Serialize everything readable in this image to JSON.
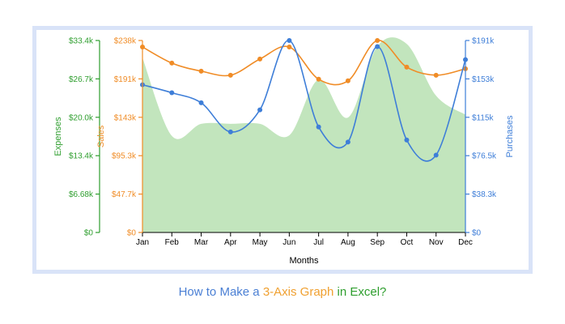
{
  "chart_data": {
    "type": "line",
    "title": "",
    "xlabel": "Months",
    "categories": [
      "Jan",
      "Feb",
      "Mar",
      "Apr",
      "May",
      "Jun",
      "Jul",
      "Aug",
      "Sep",
      "Oct",
      "Nov",
      "Dec"
    ],
    "axes": {
      "expenses": {
        "label": "Expenses",
        "color": "#2e9e2e",
        "ylim": [
          0,
          33400
        ],
        "ticks": [
          "$0",
          "$6.68k",
          "$13.4k",
          "$20.0k",
          "$26.7k",
          "$33.4k"
        ]
      },
      "sales": {
        "label": "Sales",
        "color": "#f08c26",
        "ylim": [
          0,
          238000
        ],
        "ticks": [
          "$0",
          "$47.7k",
          "$95.3k",
          "$143k",
          "$191k",
          "$238k"
        ]
      },
      "purchases": {
        "label": "Purchases",
        "color": "#3e7ed8",
        "ylim": [
          0,
          191000
        ],
        "ticks": [
          "$0",
          "$38.3k",
          "$76.5k",
          "$115k",
          "$153k",
          "$191k"
        ]
      }
    },
    "series": [
      {
        "name": "Expenses",
        "type": "area",
        "axis": "expenses",
        "color": "#c2e5bd",
        "values": [
          30400,
          16800,
          18900,
          18900,
          18900,
          16900,
          26600,
          20000,
          32400,
          32800,
          23800,
          20500
        ]
      },
      {
        "name": "Sales",
        "type": "line",
        "axis": "sales",
        "color": "#f08c26",
        "values": [
          230000,
          210000,
          200000,
          195000,
          215000,
          230000,
          190000,
          188000,
          238000,
          205000,
          195000,
          203000
        ]
      },
      {
        "name": "Purchases",
        "type": "line",
        "axis": "purchases",
        "color": "#3e7ed8",
        "values": [
          147000,
          139000,
          129000,
          100000,
          122000,
          191000,
          105000,
          90000,
          185000,
          92000,
          77000,
          172000
        ]
      }
    ]
  },
  "caption": {
    "part1": "How to Make a ",
    "part2": "3-Axis Graph",
    "part3": " in Excel?",
    "color1": "#4a7fd4",
    "color2": "#f0a030",
    "color3": "#2e9e2e"
  }
}
